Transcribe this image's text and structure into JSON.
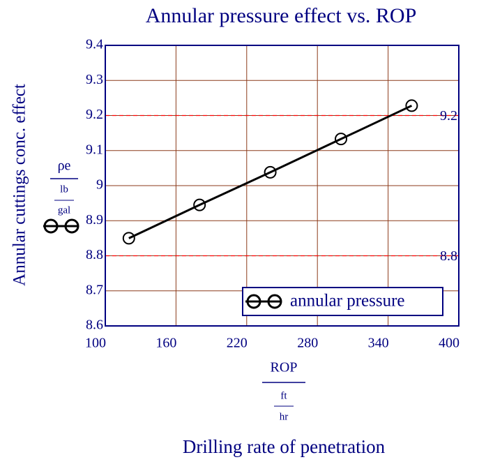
{
  "chart_data": {
    "type": "line",
    "title": "Annular pressure effect vs. ROP",
    "y_label": "Annular cuttings conc. effect",
    "y_var": "ρe",
    "y_unit_num": "lb",
    "y_unit_den": "gal",
    "x_var": "ROP",
    "x_unit_num": "ft",
    "x_unit_den": "hr",
    "x_label": "Drilling rate of penetration",
    "x": [
      120,
      180,
      240,
      300,
      360
    ],
    "series": [
      {
        "name": "annular pressure",
        "color": "#000000",
        "values": [
          8.85,
          8.945,
          9.038,
          9.133,
          9.228
        ]
      }
    ],
    "xlim": [
      100,
      400
    ],
    "xticks": [
      100,
      160,
      220,
      280,
      340,
      400
    ],
    "ylim": [
      8.6,
      9.4
    ],
    "yticks": [
      8.6,
      8.7,
      8.8,
      8.9,
      9,
      9.1,
      9.2,
      9.3,
      9.4
    ],
    "hlines": [
      9.2,
      8.8
    ],
    "hline_color": "#ff0000",
    "grid": true,
    "legend": "lower right"
  }
}
